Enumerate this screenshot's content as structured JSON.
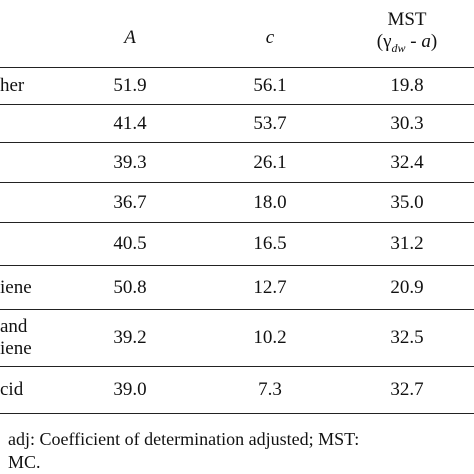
{
  "table": {
    "header": {
      "col_a": "A",
      "col_c": "c",
      "mst": "MST",
      "mst_open": "(γ",
      "mst_sub": "dw",
      "mst_mid": " - ",
      "mst_var": "a",
      "mst_close": ")"
    },
    "rows": [
      {
        "label": [
          "her"
        ],
        "cells": [
          "51.9",
          "56.1",
          "19.8"
        ]
      },
      {
        "cells": [
          "41.4",
          "53.7",
          "30.3"
        ]
      },
      {
        "cells": [
          "39.3",
          "26.1",
          "32.4"
        ]
      },
      {
        "cells": [
          "36.7",
          "18.0",
          "35.0"
        ]
      },
      {
        "cells": [
          "40.5",
          "16.5",
          "31.2"
        ]
      },
      {
        "label": [
          "iene"
        ],
        "cells": [
          "50.8",
          "12.7",
          "20.9"
        ]
      },
      {
        "label": [
          "and",
          "iene"
        ],
        "cells": [
          "39.2",
          "10.2",
          "32.5"
        ]
      },
      {
        "label": [
          "cid"
        ],
        "cells": [
          "39.0",
          "7.3",
          "32.7"
        ]
      }
    ]
  },
  "footnote": [
    "adj: Coefficient of determination adjusted; MST:",
    "MC."
  ]
}
